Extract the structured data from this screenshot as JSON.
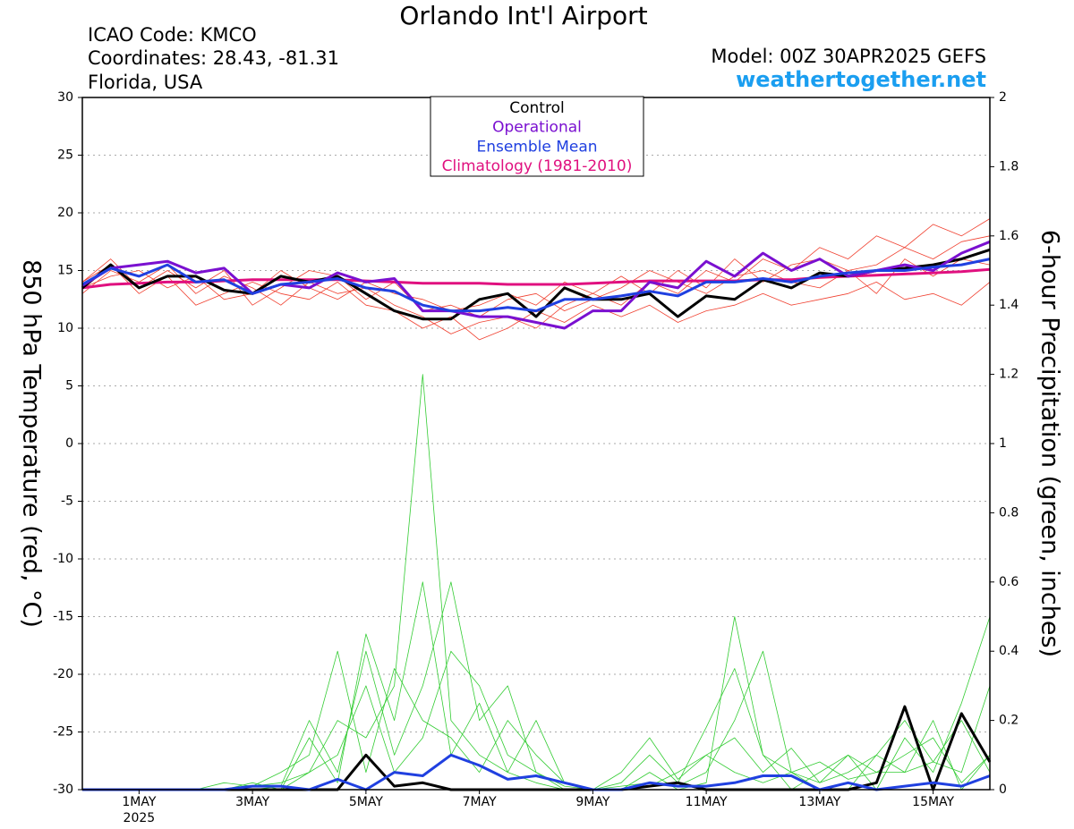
{
  "chart_data": {
    "type": "line",
    "title": "Orlando Int'l Airport",
    "info_left": [
      "ICAO Code: KMCO",
      "Coordinates: 28.43, -81.31",
      "Florida, USA"
    ],
    "model": "Model: 00Z 30APR2025 GEFS",
    "website": "weathertogether.net",
    "ylabel": "850 hPa Temperature (red, °C)",
    "y2label": "6-hour Precipitation (green, inches)",
    "year_label": "2025",
    "grid": true,
    "legend_position": "top",
    "xlim": [
      0,
      16
    ],
    "xticks": [
      {
        "value": 1,
        "label": "1MAY"
      },
      {
        "value": 3,
        "label": "3MAY"
      },
      {
        "value": 5,
        "label": "5MAY"
      },
      {
        "value": 7,
        "label": "7MAY"
      },
      {
        "value": 9,
        "label": "9MAY"
      },
      {
        "value": 11,
        "label": "11MAY"
      },
      {
        "value": 13,
        "label": "13MAY"
      },
      {
        "value": 15,
        "label": "15MAY"
      }
    ],
    "ylim": [
      -30,
      30
    ],
    "yticks": [
      -30,
      -25,
      -20,
      -15,
      -10,
      -5,
      0,
      5,
      10,
      15,
      20,
      25,
      30
    ],
    "y2lim": [
      0,
      2
    ],
    "y2ticks": [
      0,
      0.2,
      0.4,
      0.6,
      0.8,
      1,
      1.2,
      1.4,
      1.6,
      1.8,
      2
    ],
    "x": [
      0,
      0.5,
      1,
      1.5,
      2,
      2.5,
      3,
      3.5,
      4,
      4.5,
      5,
      5.5,
      6,
      6.5,
      7,
      7.5,
      8,
      8.5,
      9,
      9.5,
      10,
      10.5,
      11,
      11.5,
      12,
      12.5,
      13,
      13.5,
      14,
      14.5,
      15,
      15.5,
      16
    ],
    "series": [
      {
        "color": "#f04030",
        "width": 0.8,
        "values": [
          13,
          15,
          14,
          15.5,
          13,
          14.5,
          13.5,
          12,
          14,
          13,
          13.5,
          12,
          11,
          9.5,
          10.5,
          11,
          10,
          12,
          13,
          12,
          14,
          13,
          15,
          14,
          16,
          15,
          17,
          16,
          18,
          17,
          19,
          18,
          19.5
        ]
      },
      {
        "color": "#f04030",
        "width": 0.8,
        "values": [
          14,
          15.5,
          13,
          14.5,
          12,
          13,
          14,
          13,
          12.5,
          14,
          12,
          11.5,
          10,
          11,
          9,
          10,
          11.5,
          10.5,
          12,
          11,
          12,
          10.5,
          11.5,
          12,
          13,
          12,
          12.5,
          13,
          14,
          12.5,
          13,
          12,
          14
        ]
      },
      {
        "color": "#f04030",
        "width": 0.8,
        "values": [
          13.5,
          14.5,
          15,
          13.5,
          14.5,
          12.5,
          13,
          15,
          13.5,
          12.5,
          14,
          13,
          12.5,
          11.5,
          12,
          13,
          12,
          14,
          13,
          14.5,
          13,
          15,
          13.5,
          16,
          14,
          15.5,
          16,
          15,
          15.5,
          17,
          16,
          17.5,
          18
        ]
      },
      {
        "color": "#f04030",
        "width": 0.8,
        "values": [
          14,
          16,
          13.5,
          15,
          13.5,
          15,
          12,
          13.5,
          15,
          14.5,
          12.5,
          14,
          11.5,
          12,
          11,
          12.5,
          13,
          11.5,
          12.5,
          13.5,
          15,
          14,
          13,
          14.5,
          15,
          14,
          13.5,
          15,
          13,
          16,
          14.5,
          16,
          15.5
        ]
      },
      {
        "color": "#33cc33",
        "width": 0.8,
        "axis": "y2",
        "values": [
          0,
          0,
          0,
          0,
          0,
          0,
          0.02,
          0,
          0.05,
          0.2,
          0.15,
          0.3,
          1.2,
          0.2,
          0.1,
          0.05,
          0.02,
          0,
          0,
          0,
          0.01,
          0.05,
          0.1,
          0.05,
          0.02,
          0.05,
          0,
          0,
          0.1,
          0.05,
          0.2,
          0,
          0.1
        ]
      },
      {
        "color": "#33cc33",
        "width": 0.8,
        "axis": "y2",
        "values": [
          0,
          0,
          0,
          0,
          0,
          0,
          0,
          0.01,
          0.2,
          0.05,
          0.4,
          0.1,
          0.3,
          0.6,
          0.2,
          0.3,
          0.05,
          0,
          0,
          0,
          0.05,
          0,
          0.02,
          0.5,
          0.1,
          0,
          0.05,
          0.1,
          0,
          0.15,
          0.05,
          0.25,
          0.5
        ]
      },
      {
        "color": "#33cc33",
        "width": 0.8,
        "axis": "y2",
        "values": [
          0,
          0,
          0,
          0,
          0,
          0.02,
          0.01,
          0.05,
          0.1,
          0.4,
          0.05,
          0.35,
          0.2,
          0.15,
          0.05,
          0.2,
          0.1,
          0.02,
          0,
          0.05,
          0.15,
          0.03,
          0.1,
          0.15,
          0.05,
          0.12,
          0.02,
          0.05,
          0.1,
          0.2,
          0.08,
          0.05,
          0.3
        ]
      },
      {
        "color": "#33cc33",
        "width": 0.8,
        "axis": "y2",
        "values": [
          0,
          0,
          0,
          0,
          0,
          0,
          0,
          0,
          0.15,
          0.02,
          0.45,
          0.2,
          0.6,
          0.1,
          0.25,
          0.05,
          0.2,
          0.02,
          0,
          0.02,
          0.1,
          0.02,
          0.18,
          0.35,
          0.1,
          0.05,
          0.08,
          0.03,
          0.05,
          0.1,
          0.15,
          0.02,
          0.1
        ]
      },
      {
        "color": "#33cc33",
        "width": 0.8,
        "axis": "y2",
        "values": [
          0,
          0,
          0,
          0,
          0,
          0,
          0.01,
          0.02,
          0.05,
          0.1,
          0.3,
          0.05,
          0.15,
          0.4,
          0.3,
          0.1,
          0.05,
          0.01,
          0,
          0.01,
          0.02,
          0.01,
          0.05,
          0.2,
          0.4,
          0.05,
          0.02,
          0.1,
          0.05,
          0.05,
          0.08,
          0.2,
          0.05
        ]
      },
      {
        "name": "Climatology (1981-2010)",
        "color": "#e0107f",
        "width": 3,
        "values": [
          13.5,
          13.8,
          13.9,
          14.0,
          14.0,
          14.1,
          14.2,
          14.2,
          14.2,
          14.2,
          14.1,
          14.0,
          13.9,
          13.9,
          13.9,
          13.8,
          13.8,
          13.8,
          13.9,
          14.0,
          14.1,
          14.1,
          14.1,
          14.1,
          14.2,
          14.2,
          14.4,
          14.5,
          14.6,
          14.7,
          14.8,
          14.9,
          15.1
        ]
      },
      {
        "color": "#000000",
        "width": 3,
        "axis": "y2",
        "values": [
          0,
          0,
          0,
          0,
          0,
          0,
          0,
          0,
          0,
          0,
          0.1,
          0.01,
          0.02,
          0,
          0,
          0,
          0,
          0,
          0,
          0,
          0.01,
          0.02,
          0,
          0,
          0,
          0,
          0,
          0,
          0.02,
          0.24,
          0,
          0.22,
          0.08
        ]
      },
      {
        "color": "#2040e0",
        "width": 3,
        "axis": "y2",
        "values": [
          0,
          0,
          0,
          0,
          0,
          0,
          0.01,
          0.01,
          0,
          0.03,
          0,
          0.05,
          0.04,
          0.1,
          0.07,
          0.03,
          0.04,
          0.02,
          0,
          0,
          0.02,
          0.01,
          0.01,
          0.02,
          0.04,
          0.04,
          0,
          0.02,
          0,
          0.01,
          0.02,
          0.01,
          0.04
        ]
      },
      {
        "name": "Control",
        "color": "#000000",
        "width": 3,
        "values": [
          13.5,
          15.5,
          13.5,
          14.5,
          14.5,
          13.3,
          13.0,
          14.5,
          14.0,
          14.5,
          13.0,
          11.5,
          10.8,
          10.8,
          12.5,
          13.0,
          11.0,
          13.5,
          12.5,
          12.5,
          13.0,
          11.0,
          12.8,
          12.5,
          14.2,
          13.5,
          14.8,
          14.5,
          15.0,
          15.2,
          15.5,
          16.0,
          16.8
        ]
      },
      {
        "name": "Operational",
        "color": "#7a10d0",
        "width": 3,
        "values": [
          13.7,
          15.2,
          15.5,
          15.8,
          14.8,
          15.2,
          13.0,
          13.8,
          13.5,
          14.8,
          14.0,
          14.3,
          11.5,
          11.5,
          11.0,
          11.0,
          10.5,
          10.0,
          11.5,
          11.5,
          14.0,
          13.5,
          15.8,
          14.5,
          16.5,
          15.0,
          16.0,
          14.5,
          15.0,
          15.5,
          15.0,
          16.5,
          17.5
        ]
      },
      {
        "name": "Ensemble Mean",
        "color": "#2040e0",
        "width": 3,
        "values": [
          13.8,
          15.2,
          14.5,
          15.5,
          14.0,
          14.2,
          13.0,
          13.8,
          14.0,
          14.3,
          13.5,
          13.2,
          12.0,
          11.5,
          11.5,
          11.8,
          11.5,
          12.5,
          12.5,
          12.8,
          13.2,
          12.8,
          14.0,
          14.0,
          14.3,
          14.0,
          14.5,
          14.8,
          15.0,
          15.0,
          15.3,
          15.5,
          16.0
        ]
      }
    ],
    "legend_order": [
      12,
      13,
      14,
      9
    ]
  }
}
